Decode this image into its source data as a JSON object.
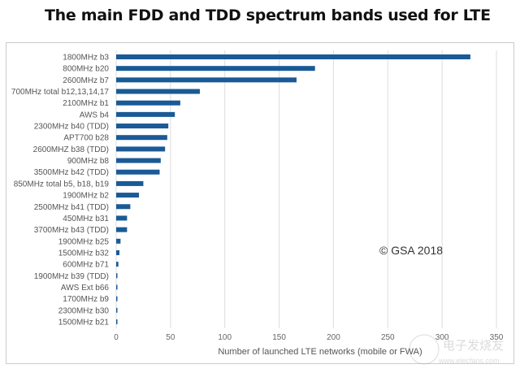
{
  "chart_data": {
    "type": "bar",
    "orientation": "horizontal",
    "title": "The main FDD and TDD spectrum bands used for LTE",
    "xlabel": "Number of launched LTE networks (mobile or FWA)",
    "ylabel": "",
    "xlim": [
      0,
      350
    ],
    "xticks": [
      0,
      50,
      100,
      150,
      200,
      250,
      300,
      350
    ],
    "grid": true,
    "bar_color": "#1a5a96",
    "annotation": "© GSA 2018",
    "categories": [
      "1800MHz b3",
      "800MHz b20",
      "2600MHz b7",
      "700MHz total b12,13,14,17",
      "2100MHz b1",
      "AWS b4",
      "2300MHz b40 (TDD)",
      "APT700 b28",
      "2600MHZ b38 (TDD)",
      "900MHz b8",
      "3500MHz b42 (TDD)",
      "850MHz total b5, b18, b19",
      "1900MHz b2",
      "2500MHz b41 (TDD)",
      "450MHz b31",
      "3700MHz b43 (TDD)",
      "1900MHz b25",
      "1500MHz b32",
      "600MHz b71",
      "1900MHz b39 (TDD)",
      "AWS Ext b66",
      "1700MHz b9",
      "2300MHz b30",
      "1500MHz b21"
    ],
    "values": [
      326,
      183,
      166,
      77,
      59,
      54,
      48,
      47,
      45,
      41,
      40,
      25,
      21,
      13,
      10,
      10,
      4,
      3,
      2,
      1,
      1,
      1,
      1,
      1
    ]
  },
  "watermark": "电子发烧友 www.elecfans.com"
}
